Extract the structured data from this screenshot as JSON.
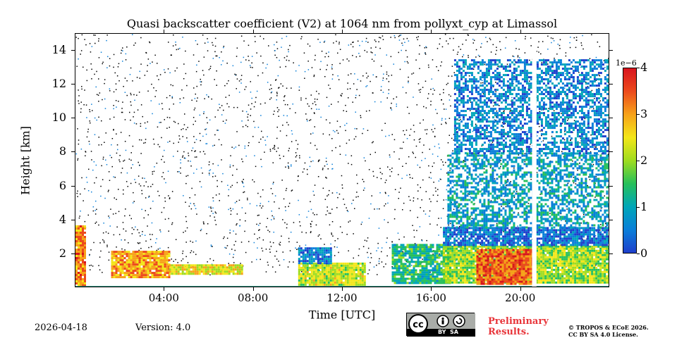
{
  "chart_data": {
    "type": "heatmap",
    "title": "Quasi backscatter coefficient (V2) at 1064 nm from pollyxt_cyp at Limassol",
    "xlabel": "Time [UTC]",
    "ylabel": "Height [km]",
    "xlim_hours": [
      0,
      24
    ],
    "ylim_km": [
      0,
      15
    ],
    "x_ticks": [
      {
        "value": 4,
        "label": "04:00"
      },
      {
        "value": 8,
        "label": "08:00"
      },
      {
        "value": 12,
        "label": "12:00"
      },
      {
        "value": 16,
        "label": "16:00"
      },
      {
        "value": 20,
        "label": "20:00"
      }
    ],
    "y_ticks": [
      {
        "value": 2,
        "label": "2"
      },
      {
        "value": 4,
        "label": "4"
      },
      {
        "value": 6,
        "label": "6"
      },
      {
        "value": 8,
        "label": "8"
      },
      {
        "value": 10,
        "label": "10"
      },
      {
        "value": 12,
        "label": "12"
      },
      {
        "value": 14,
        "label": "14"
      }
    ],
    "colorbar": {
      "min": 0,
      "max": 4,
      "exponent_label": "1e−6",
      "ticks": [
        {
          "value": 0,
          "label": "0"
        },
        {
          "value": 1,
          "label": "1"
        },
        {
          "value": 2,
          "label": "2"
        },
        {
          "value": 3,
          "label": "3"
        },
        {
          "value": 4,
          "label": "4"
        }
      ],
      "colormap": [
        "#1f3fcc",
        "#0a7fd9",
        "#00a6b8",
        "#27c05a",
        "#9fdc1f",
        "#f3e618",
        "#f7a21a",
        "#ec4a1c",
        "#d8141e"
      ]
    },
    "layers": [
      {
        "t0": 0.0,
        "t1": 0.4,
        "h0": 0.1,
        "h1": 3.7,
        "value": 3.2
      },
      {
        "t0": 1.6,
        "t1": 4.2,
        "h0": 0.7,
        "h1": 2.2,
        "value": 3.0
      },
      {
        "t0": 4.2,
        "t1": 7.5,
        "h0": 0.9,
        "h1": 1.4,
        "value": 2.4
      },
      {
        "t0": 10.0,
        "t1": 13.0,
        "h0": 0.2,
        "h1": 1.5,
        "value": 2.2
      },
      {
        "t0": 10.0,
        "t1": 11.5,
        "h0": 1.5,
        "h1": 2.4,
        "value": 0.6
      },
      {
        "t0": 14.2,
        "t1": 16.8,
        "h0": 0.3,
        "h1": 2.6,
        "value": 1.3
      },
      {
        "t0": 16.5,
        "t1": 24.0,
        "h0": 0.3,
        "h1": 2.5,
        "value": 2.0
      },
      {
        "t0": 18.0,
        "t1": 20.5,
        "h0": 0.3,
        "h1": 2.3,
        "value": 3.4
      },
      {
        "t0": 16.5,
        "t1": 24.0,
        "h0": 2.5,
        "h1": 3.6,
        "value": 0.4
      },
      {
        "t0": 16.7,
        "t1": 24.0,
        "h0": 3.6,
        "h1": 8.0,
        "value": 0.9
      },
      {
        "t0": 17.0,
        "t1": 24.0,
        "h0": 8.0,
        "h1": 13.5,
        "value": 0.6
      }
    ],
    "data_gap": {
      "t0": 20.5,
      "t1": 20.7
    }
  },
  "footer": {
    "date": "2026-04-18",
    "version": "Version: 4.0",
    "cc_text": "BY  SA",
    "preliminary_line1": "Preliminary",
    "preliminary_line2": "Results.",
    "copyright_line1": "© TROPOS & ECoE 2026.",
    "copyright_line2": "CC BY SA 4.0 License."
  }
}
